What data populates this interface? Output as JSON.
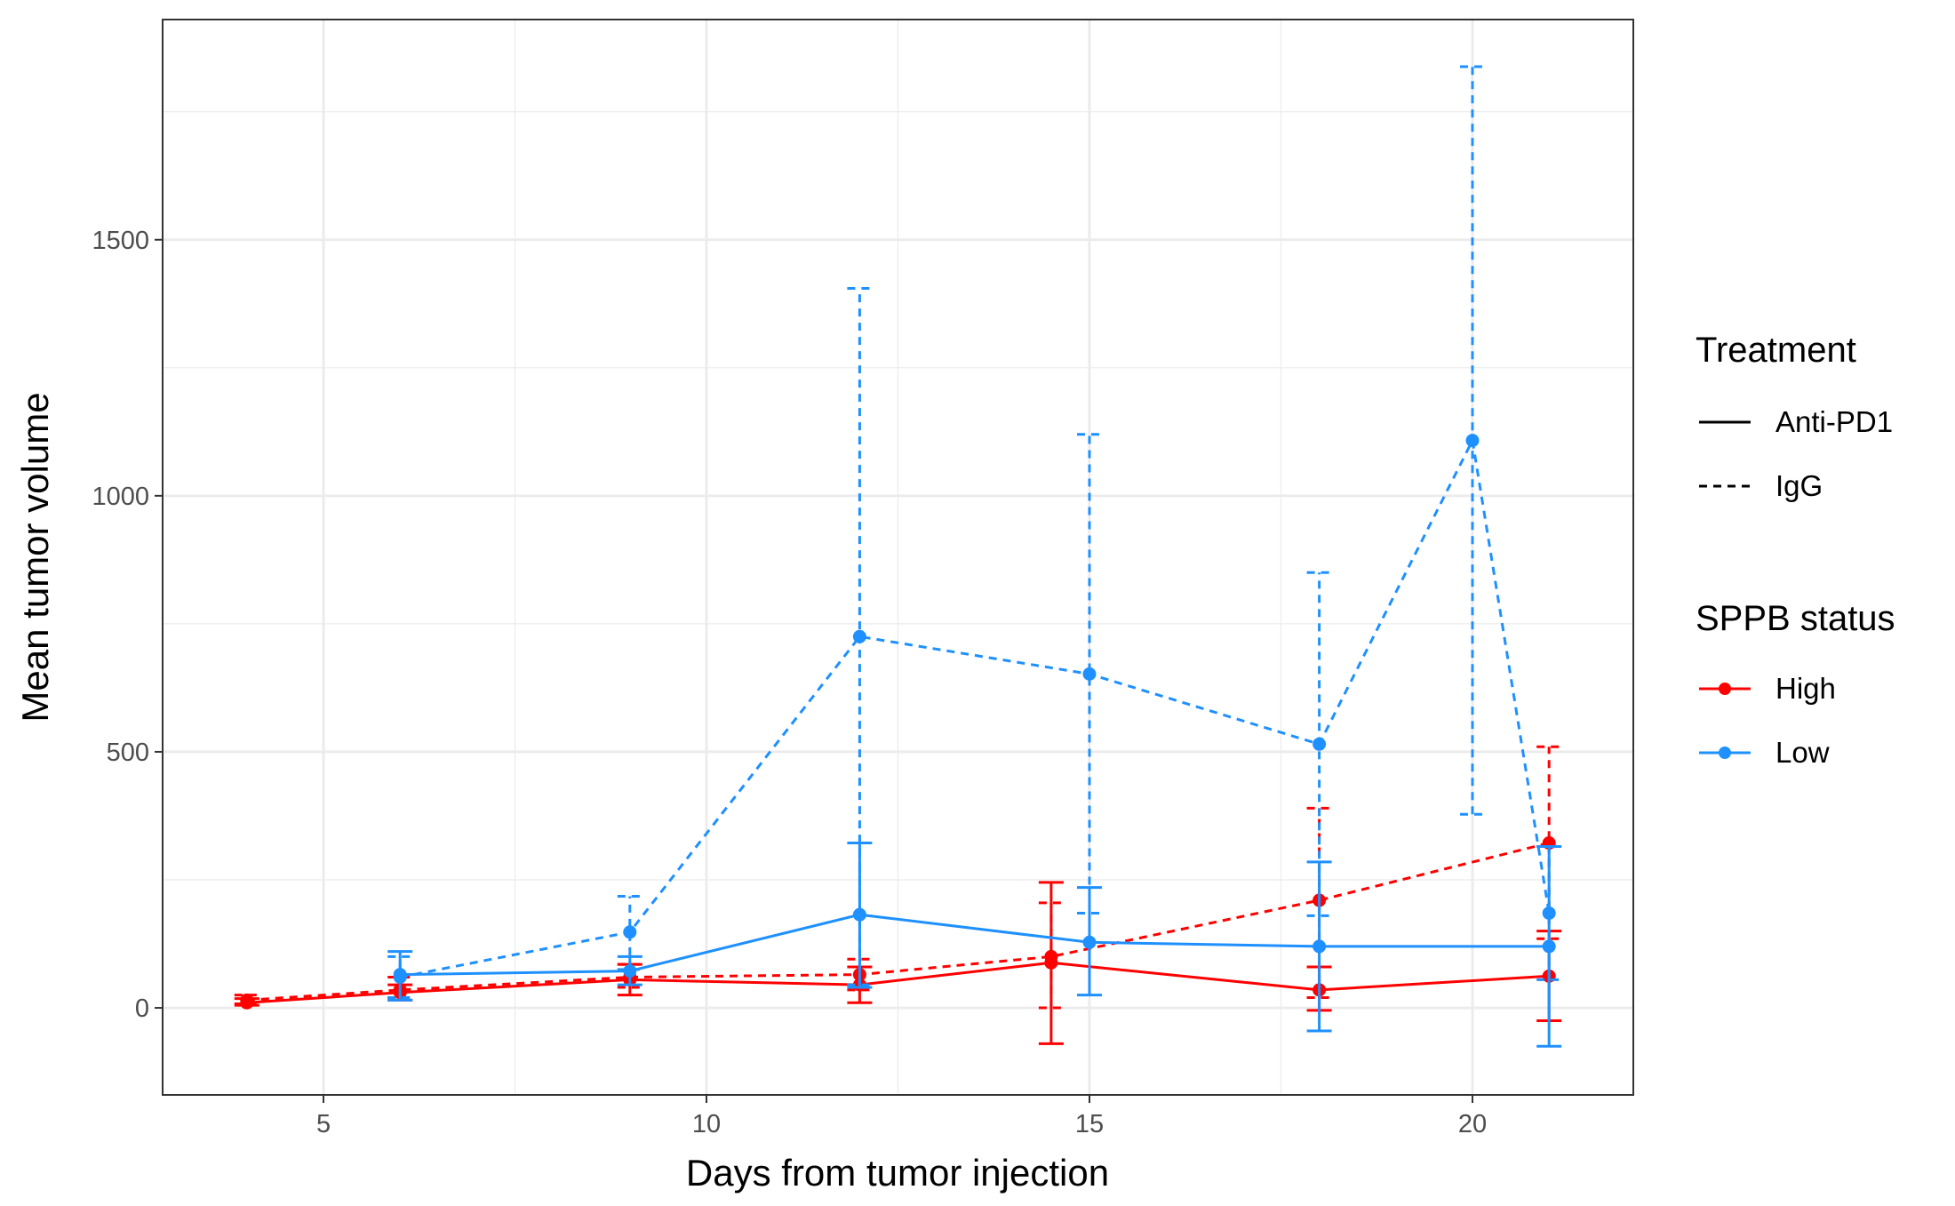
{
  "chart_data": {
    "type": "line",
    "xlabel": "Days from tumor injection",
    "ylabel": "Mean tumor volume",
    "xlim": [
      2.9,
      22.1
    ],
    "ylim": [
      -170,
      1930
    ],
    "x_major_ticks": [
      5,
      10,
      15,
      20
    ],
    "x_minor_ticks": [
      7.5,
      12.5,
      17.5
    ],
    "y_major_ticks": [
      0,
      500,
      1000,
      1500
    ],
    "y_minor_ticks": [
      250,
      750,
      1250,
      1750
    ],
    "grid": true,
    "legend_position": "right",
    "legends": {
      "treatment": {
        "title": "Treatment",
        "items": [
          {
            "label": "Anti-PD1",
            "linetype": "solid"
          },
          {
            "label": "IgG",
            "linetype": "dashed"
          }
        ]
      },
      "status": {
        "title": "SPPB status",
        "items": [
          {
            "label": "High",
            "color": "#ff0000"
          },
          {
            "label": "Low",
            "color": "#1e90ff"
          }
        ]
      }
    },
    "series": [
      {
        "status": "High",
        "treatment": "Anti-PD1",
        "color": "#ff0000",
        "linetype": "solid",
        "points": [
          {
            "x": 4,
            "y": 10,
            "lo": 5,
            "hi": 18
          },
          {
            "x": 6,
            "y": 30,
            "lo": 15,
            "hi": 45
          },
          {
            "x": 9,
            "y": 55,
            "lo": 25,
            "hi": 85
          },
          {
            "x": 12,
            "y": 45,
            "lo": 10,
            "hi": 80
          },
          {
            "x": 14.5,
            "y": 88,
            "lo": -70,
            "hi": 245
          },
          {
            "x": 18,
            "y": 35,
            "lo": -5,
            "hi": 80
          },
          {
            "x": 21,
            "y": 62,
            "lo": -25,
            "hi": 150
          }
        ]
      },
      {
        "status": "High",
        "treatment": "IgG",
        "color": "#ff0000",
        "linetype": "dashed",
        "points": [
          {
            "x": 4,
            "y": 15,
            "lo": 8,
            "hi": 25
          },
          {
            "x": 6,
            "y": 35,
            "lo": 20,
            "hi": 60
          },
          {
            "x": 9,
            "y": 60,
            "lo": 40,
            "hi": 85
          },
          {
            "x": 12,
            "y": 65,
            "lo": 35,
            "hi": 95
          },
          {
            "x": 14.5,
            "y": 100,
            "lo": 0,
            "hi": 205
          },
          {
            "x": 18,
            "y": 210,
            "lo": 20,
            "hi": 390
          },
          {
            "x": 21,
            "y": 322,
            "lo": 135,
            "hi": 510
          }
        ]
      },
      {
        "status": "Low",
        "treatment": "Anti-PD1",
        "color": "#1e90ff",
        "linetype": "solid",
        "points": [
          {
            "x": 6,
            "y": 65,
            "lo": 15,
            "hi": 110
          },
          {
            "x": 9,
            "y": 72,
            "lo": 45,
            "hi": 100
          },
          {
            "x": 12,
            "y": 182,
            "lo": 40,
            "hi": 322
          },
          {
            "x": 15,
            "y": 128,
            "lo": 25,
            "hi": 235
          },
          {
            "x": 18,
            "y": 120,
            "lo": -45,
            "hi": 285
          },
          {
            "x": 21,
            "y": 120,
            "lo": -75,
            "hi": 315
          }
        ]
      },
      {
        "status": "Low",
        "treatment": "IgG",
        "color": "#1e90ff",
        "linetype": "dashed",
        "points": [
          {
            "x": 6,
            "y": 60,
            "lo": 20,
            "hi": 100
          },
          {
            "x": 9,
            "y": 148,
            "lo": 75,
            "hi": 218
          },
          {
            "x": 12,
            "y": 725,
            "lo": 45,
            "hi": 1405
          },
          {
            "x": 15,
            "y": 652,
            "lo": 185,
            "hi": 1120
          },
          {
            "x": 18,
            "y": 515,
            "lo": 180,
            "hi": 850
          },
          {
            "x": 20,
            "y": 1108,
            "lo": 378,
            "hi": 1838
          },
          {
            "x": 21,
            "y": 185,
            "lo": 55,
            "hi": 315
          }
        ]
      }
    ]
  }
}
